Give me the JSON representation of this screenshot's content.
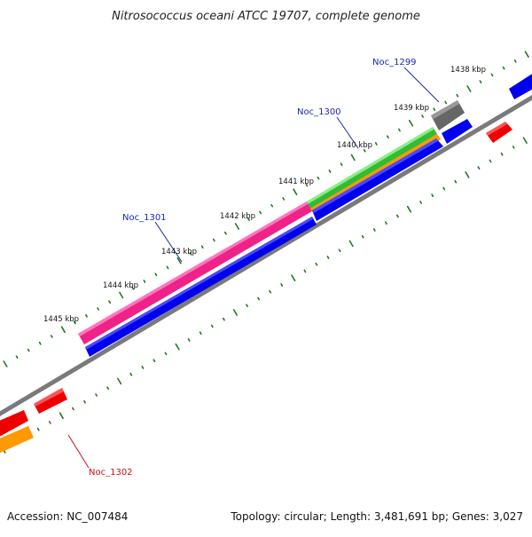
{
  "title": "Nitrosococcus oceani ATCC 19707, complete genome",
  "footer": {
    "accession": "Accession: NC_007484",
    "topology": "Topology: circular; Length: 3,481,691 bp; Genes: 3,027"
  },
  "kbp_labels": [
    "1438 kbp",
    "1439 kbp",
    "1440 kbp",
    "1441 kbp",
    "1442 kbp",
    "1443 kbp",
    "1444 kbp",
    "1445 kbp"
  ],
  "gene_labels": {
    "noc_1299": "Noc_1299",
    "noc_1300": "Noc_1300",
    "noc_1301": "Noc_1301",
    "noc_1302": "Noc_1302"
  },
  "colors": {
    "backbone": "#7a7a7a",
    "tick": "#1f7a1f",
    "cds_forward": "#0000ee",
    "cds_reverse": "#ee0000",
    "magenta": "#ee2288",
    "green": "#33bb33",
    "orange": "#ff9900",
    "gray_feature": "#666666",
    "label_blue": "#1a2aa8",
    "label_red": "#cc1111"
  }
}
